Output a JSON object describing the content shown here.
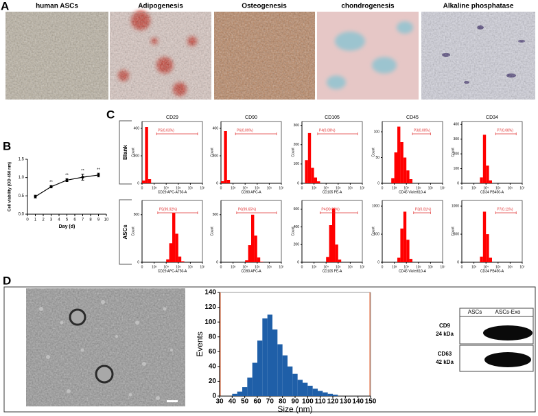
{
  "panel_labels": [
    "A",
    "B",
    "C",
    "D"
  ],
  "panel_a": {
    "titles": [
      "human ASCs",
      "Adipogenesis",
      "Osteogenesis",
      "chondrogenesis",
      "Alkaline phosphatase"
    ]
  },
  "panel_c": {
    "row_labels": [
      "Blank",
      "ASCs"
    ]
  },
  "western_blot": {
    "columns": [
      "ASCs",
      "ASCs-Exo"
    ],
    "rows": [
      {
        "protein": "CD9",
        "size": "24 kDa"
      },
      {
        "protein": "CD63",
        "size": "42 kDa"
      }
    ]
  },
  "chart_data": [
    {
      "type": "line",
      "xlabel": "Day (d)",
      "ylabel": "Cell viability (OD 450 nm)",
      "color": "#000000",
      "x": [
        1,
        3,
        5,
        7,
        9
      ],
      "values": [
        0.48,
        0.75,
        0.93,
        1.01,
        1.07
      ],
      "errors": [
        0.04,
        0.03,
        0.04,
        0.08,
        0.05
      ],
      "annotations": [
        {
          "x": 3,
          "text": "**"
        },
        {
          "x": 5,
          "text": "**"
        },
        {
          "x": 7,
          "text": "**"
        },
        {
          "x": 9,
          "text": "**"
        }
      ],
      "xlim": [
        0,
        10
      ],
      "xticks": [
        0,
        1,
        2,
        3,
        4,
        5,
        6,
        7,
        8,
        9,
        10
      ],
      "ylim": [
        0,
        1.5
      ],
      "yticks": [
        {
          "value": 0,
          "label": "0.0"
        },
        {
          "value": 0.5,
          "label": "0.5"
        },
        {
          "value": 1,
          "label": "1.0"
        },
        {
          "value": 1.5,
          "label": "1.5"
        }
      ]
    },
    {
      "type": "histogram",
      "xlabel": "Size (nm)",
      "ylabel": "Events",
      "color": "#1f5fa8",
      "bins": [
        40,
        44,
        48,
        52,
        56,
        60,
        64,
        68,
        72,
        76,
        80,
        84,
        88,
        92,
        96,
        100,
        104,
        108,
        112,
        116,
        120,
        124
      ],
      "values": [
        3,
        6,
        12,
        25,
        45,
        75,
        105,
        110,
        90,
        70,
        55,
        40,
        30,
        22,
        18,
        14,
        10,
        7,
        5,
        3,
        2
      ],
      "xlim": [
        30,
        150
      ],
      "xticks": [
        30,
        40,
        50,
        60,
        70,
        80,
        90,
        100,
        110,
        120,
        130,
        140,
        150
      ],
      "ylim": [
        0,
        140
      ],
      "yticks": [
        0,
        20,
        40,
        60,
        80,
        100,
        120,
        140
      ]
    },
    {
      "type": "flow",
      "title": "CD29",
      "xlabel": "CD29 APC-A750-A",
      "ylabel": "Count",
      "color": "#ff0000",
      "gate": {
        "label": "P5(0.03%)",
        "x": [
          1.2,
          4.6
        ]
      },
      "values": [
        20,
        410,
        30,
        0,
        0,
        0,
        0,
        0,
        0,
        0,
        0,
        0,
        0,
        0,
        0,
        0,
        0,
        0,
        0,
        0
      ],
      "xlim": [
        0,
        5
      ],
      "xticks": [
        {
          "value": 0,
          "label": "0"
        },
        {
          "value": 1,
          "label": "10³"
        },
        {
          "value": 2,
          "label": "10⁴"
        },
        {
          "value": 3,
          "label": "10⁵"
        },
        {
          "value": 4,
          "label": "10⁶"
        },
        {
          "value": 5,
          "label": "10⁷"
        }
      ],
      "ylim": [
        0,
        450
      ],
      "yticks": [
        0,
        200,
        400
      ]
    },
    {
      "type": "flow",
      "title": "CD90",
      "xlabel": "CD90 APC-A",
      "ylabel": "Count",
      "color": "#ff0000",
      "gate": {
        "label": "P6(0.09%)",
        "x": [
          1.2,
          4.6
        ]
      },
      "values": [
        15,
        380,
        25,
        0,
        0,
        0,
        0,
        0,
        0,
        0,
        0,
        0,
        0,
        0,
        0,
        0,
        0,
        0,
        0,
        0
      ],
      "xlim": [
        0,
        5
      ],
      "xticks": [
        {
          "value": 0,
          "label": "0"
        },
        {
          "value": 1,
          "label": "10³"
        },
        {
          "value": 2,
          "label": "10⁴"
        },
        {
          "value": 3,
          "label": "10⁵"
        },
        {
          "value": 4,
          "label": "10⁶"
        },
        {
          "value": 5,
          "label": "10⁷"
        }
      ],
      "ylim": [
        0,
        450
      ],
      "yticks": [
        0,
        200,
        400
      ]
    },
    {
      "type": "flow",
      "title": "CD105",
      "xlabel": "CD105 PE-A",
      "ylabel": "Count",
      "color": "#ff0000",
      "gate": {
        "label": "P4(0.09%)",
        "x": [
          1.3,
          4.6
        ]
      },
      "values": [
        0,
        120,
        260,
        80,
        30,
        10,
        0,
        0,
        0,
        0,
        0,
        0,
        0,
        0,
        0,
        0,
        0,
        0,
        0,
        0
      ],
      "xlim": [
        0,
        5
      ],
      "xticks": [
        {
          "value": 0,
          "label": "0"
        },
        {
          "value": 1,
          "label": "10³"
        },
        {
          "value": 2,
          "label": "10⁴"
        },
        {
          "value": 3,
          "label": "10⁵"
        },
        {
          "value": 4,
          "label": "10⁶"
        },
        {
          "value": 5,
          "label": "10⁷"
        }
      ],
      "ylim": [
        0,
        320
      ],
      "yticks": [
        0,
        100,
        200,
        300
      ]
    },
    {
      "type": "flow",
      "title": "CD45",
      "xlabel": "CD45 Violet610-A",
      "ylabel": "Count",
      "color": "#ff0000",
      "gate": {
        "label": "P3(0.00%)",
        "x": [
          2.5,
          4
        ]
      },
      "values": [
        0,
        0,
        0,
        10,
        60,
        110,
        80,
        50,
        25,
        8,
        0,
        0,
        0,
        0,
        0,
        0,
        0,
        0,
        0,
        0
      ],
      "xlim": [
        0,
        5
      ],
      "xticks": [
        {
          "value": 0,
          "label": "0"
        },
        {
          "value": 1,
          "label": "10³"
        },
        {
          "value": 2,
          "label": "10⁴"
        },
        {
          "value": 3,
          "label": "10⁵"
        },
        {
          "value": 4,
          "label": "10⁶"
        },
        {
          "value": 5,
          "label": "10⁷"
        }
      ],
      "ylim": [
        0,
        120
      ],
      "yticks": [
        0,
        50,
        100
      ]
    },
    {
      "type": "flow",
      "title": "CD34",
      "xlabel": "CD34 PB450-A",
      "ylabel": "Count",
      "color": "#ff0000",
      "gate": {
        "label": "P7(0.08%)",
        "x": [
          2.8,
          4.5
        ]
      },
      "values": [
        0,
        0,
        0,
        0,
        0,
        0,
        40,
        330,
        120,
        20,
        0,
        0,
        0,
        0,
        0,
        0,
        0,
        0,
        0,
        0
      ],
      "xlim": [
        0,
        5
      ],
      "xticks": [
        {
          "value": 0,
          "label": "0"
        },
        {
          "value": 1,
          "label": "10³"
        },
        {
          "value": 2,
          "label": "10⁴"
        },
        {
          "value": 3,
          "label": "10⁵"
        },
        {
          "value": 4,
          "label": "10⁶"
        },
        {
          "value": 5,
          "label": "10⁷"
        }
      ],
      "ylim": [
        0,
        420
      ],
      "yticks": [
        0,
        100,
        200,
        300,
        400
      ]
    },
    {
      "type": "flow",
      "xlabel": "CD29 APC-A750-A",
      "ylabel": "Count",
      "color": "#ff0000",
      "gate": {
        "label": "P5(99.92%)",
        "x": [
          1.3,
          4.6
        ]
      },
      "values": [
        0,
        0,
        0,
        0,
        0,
        0,
        0,
        0,
        30,
        200,
        520,
        300,
        60,
        10,
        0,
        0,
        0,
        0,
        0,
        0
      ],
      "xlim": [
        0,
        5
      ],
      "xticks": [
        {
          "value": 0,
          "label": "0"
        },
        {
          "value": 1,
          "label": "10³"
        },
        {
          "value": 2,
          "label": "10⁴"
        },
        {
          "value": 3,
          "label": "10⁵"
        },
        {
          "value": 4,
          "label": "10⁶"
        },
        {
          "value": 5,
          "label": "10⁷"
        }
      ],
      "ylim": [
        0,
        650
      ],
      "yticks": [
        0,
        500
      ]
    },
    {
      "type": "flow",
      "xlabel": "CD90 APC-A",
      "ylabel": "Count",
      "color": "#ff0000",
      "gate": {
        "label": "P6(99.65%)",
        "x": [
          1.3,
          4.6
        ]
      },
      "values": [
        0,
        0,
        0,
        0,
        0,
        0,
        0,
        0,
        20,
        180,
        500,
        280,
        50,
        5,
        0,
        0,
        0,
        0,
        0,
        0
      ],
      "xlim": [
        0,
        5
      ],
      "xticks": [
        {
          "value": 0,
          "label": "0"
        },
        {
          "value": 1,
          "label": "10³"
        },
        {
          "value": 2,
          "label": "10⁴"
        },
        {
          "value": 3,
          "label": "10⁵"
        },
        {
          "value": 4,
          "label": "10⁶"
        },
        {
          "value": 5,
          "label": "10⁷"
        }
      ],
      "ylim": [
        0,
        650
      ],
      "yticks": [
        0,
        500
      ]
    },
    {
      "type": "flow",
      "xlabel": "CD105 PE-A",
      "ylabel": "Count",
      "color": "#ff0000",
      "gate": {
        "label": "P4(99.83%)",
        "x": [
          1.5,
          4.6
        ]
      },
      "values": [
        0,
        0,
        0,
        0,
        0,
        0,
        0,
        0,
        60,
        420,
        610,
        200,
        30,
        0,
        0,
        0,
        0,
        0,
        0,
        0
      ],
      "xlim": [
        0,
        5
      ],
      "xticks": [
        {
          "value": 0,
          "label": "0"
        },
        {
          "value": 1,
          "label": "10³"
        },
        {
          "value": 2,
          "label": "10⁴"
        },
        {
          "value": 3,
          "label": "10⁵"
        },
        {
          "value": 4,
          "label": "10⁶"
        },
        {
          "value": 5,
          "label": "10⁷"
        }
      ],
      "ylim": [
        0,
        700
      ],
      "yticks": [
        0,
        200,
        400,
        600
      ]
    },
    {
      "type": "flow",
      "xlabel": "CD45 Violet610-A",
      "ylabel": "Count",
      "color": "#ff0000",
      "gate": {
        "label": "P3(0.01%)",
        "x": [
          2.6,
          4
        ]
      },
      "values": [
        0,
        0,
        0,
        0,
        0,
        80,
        600,
        900,
        400,
        60,
        0,
        0,
        0,
        0,
        0,
        0,
        0,
        0,
        0,
        0
      ],
      "xlim": [
        0,
        5
      ],
      "xticks": [
        {
          "value": 0,
          "label": "0"
        },
        {
          "value": 1,
          "label": "10³"
        },
        {
          "value": 2,
          "label": "10⁴"
        },
        {
          "value": 3,
          "label": "10⁵"
        },
        {
          "value": 4,
          "label": "10⁶"
        },
        {
          "value": 5,
          "label": "10⁷"
        }
      ],
      "ylim": [
        0,
        1100
      ],
      "yticks": [
        0,
        500,
        1000
      ]
    },
    {
      "type": "flow",
      "xlabel": "CD34 PB450-A",
      "ylabel": "Count",
      "color": "#ff0000",
      "gate": {
        "label": "P7(0.11%)",
        "x": [
          2.8,
          4.5
        ]
      },
      "values": [
        0,
        0,
        0,
        0,
        0,
        0,
        100,
        900,
        500,
        80,
        0,
        0,
        0,
        0,
        0,
        0,
        0,
        0,
        0,
        0
      ],
      "xlim": [
        0,
        5
      ],
      "xticks": [
        {
          "value": 0,
          "label": "0"
        },
        {
          "value": 1,
          "label": "10³"
        },
        {
          "value": 2,
          "label": "10⁴"
        },
        {
          "value": 3,
          "label": "10⁵"
        },
        {
          "value": 4,
          "label": "10⁶"
        },
        {
          "value": 5,
          "label": "10⁷"
        }
      ],
      "ylim": [
        0,
        1100
      ],
      "yticks": [
        0,
        500,
        1000
      ]
    }
  ]
}
